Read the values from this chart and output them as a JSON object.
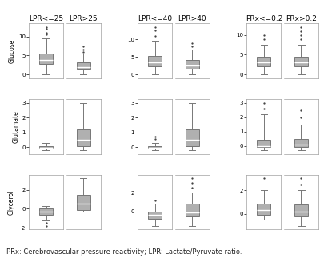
{
  "col_group_titles": [
    [
      "LPR<=25",
      "LPR>25"
    ],
    [
      "LPR<=40",
      "LPR>40"
    ],
    [
      "PRx<=0.2",
      "PRx>0.2"
    ]
  ],
  "row_labels": [
    "Glucose",
    "Glutamate",
    "Glycerol"
  ],
  "box_color": "#b0b0b0",
  "whisker_color": "#777777",
  "median_color": "#ffffff",
  "flier_color": "#333333",
  "background_color": "#ffffff",
  "caption": "PRx: Cerebrovascular pressure reactivity; LPR: Lactate/Pyruvate ratio.",
  "caption_fontsize": 6.0,
  "title_fontsize": 6.5,
  "ylabel_fontsize": 5.5,
  "tick_fontsize": 5.0,
  "boxes": {
    "row0_col0_box0": {
      "whislo": 0.0,
      "q1": 2.8,
      "med": 3.8,
      "q3": 5.5,
      "whishi": 9.5,
      "fliers_high": [
        10.5,
        11.0,
        12.0,
        12.5
      ],
      "fliers_low": []
    },
    "row0_col0_box1": {
      "whislo": 0.0,
      "q1": 1.2,
      "med": 2.0,
      "q3": 3.2,
      "whishi": 5.5,
      "fliers_high": [
        6.0,
        6.5,
        7.5
      ],
      "fliers_low": []
    },
    "row0_col1_box0": {
      "whislo": 0.0,
      "q1": 2.2,
      "med": 3.5,
      "q3": 5.2,
      "whishi": 9.5,
      "fliers_high": [
        11.0,
        12.5,
        13.5
      ],
      "fliers_low": []
    },
    "row0_col1_box1": {
      "whislo": 0.0,
      "q1": 1.5,
      "med": 2.5,
      "q3": 4.0,
      "whishi": 7.0,
      "fliers_high": [
        8.0,
        9.0
      ],
      "fliers_low": []
    },
    "row0_col2_box0": {
      "whislo": 0.0,
      "q1": 2.0,
      "med": 3.0,
      "q3": 4.5,
      "whishi": 7.5,
      "fliers_high": [
        9.0,
        10.0
      ],
      "fliers_low": []
    },
    "row0_col2_box1": {
      "whislo": 0.0,
      "q1": 2.0,
      "med": 3.0,
      "q3": 4.5,
      "whishi": 7.5,
      "fliers_high": [
        9.0,
        10.0,
        11.0,
        12.0
      ],
      "fliers_low": []
    },
    "row1_col0_box0": {
      "whislo": -0.2,
      "q1": -0.1,
      "med": -0.05,
      "q3": 0.05,
      "whishi": 0.3,
      "fliers_high": [],
      "fliers_low": []
    },
    "row1_col0_box1": {
      "whislo": -0.2,
      "q1": 0.05,
      "med": 0.5,
      "q3": 1.2,
      "whishi": 3.0,
      "fliers_high": [],
      "fliers_low": []
    },
    "row1_col1_box0": {
      "whislo": -0.2,
      "q1": -0.1,
      "med": -0.05,
      "q3": 0.05,
      "whishi": 0.3,
      "fliers_high": [
        0.55,
        0.7
      ],
      "fliers_low": []
    },
    "row1_col1_box1": {
      "whislo": -0.2,
      "q1": 0.05,
      "med": 0.5,
      "q3": 1.2,
      "whishi": 3.0,
      "fliers_high": [],
      "fliers_low": []
    },
    "row1_col2_box0": {
      "whislo": -0.3,
      "q1": -0.1,
      "med": 0.0,
      "q3": 0.4,
      "whishi": 2.2,
      "fliers_high": [
        2.6,
        3.0
      ],
      "fliers_low": []
    },
    "row1_col2_box1": {
      "whislo": -0.3,
      "q1": -0.1,
      "med": 0.1,
      "q3": 0.5,
      "whishi": 1.5,
      "fliers_high": [
        2.0,
        2.5
      ],
      "fliers_low": []
    },
    "row2_col0_box0": {
      "whislo": -1.2,
      "q1": -0.6,
      "med": -0.3,
      "q3": 0.0,
      "whishi": 0.3,
      "fliers_high": [],
      "fliers_low": [
        -1.5,
        -1.8
      ]
    },
    "row2_col0_box1": {
      "whislo": -0.3,
      "q1": -0.1,
      "med": 0.5,
      "q3": 1.5,
      "whishi": 3.2,
      "fliers_high": [],
      "fliers_low": []
    },
    "row2_col1_box0": {
      "whislo": -1.5,
      "q1": -0.8,
      "med": -0.3,
      "q3": 0.0,
      "whishi": 0.8,
      "fliers_high": [
        1.2
      ],
      "fliers_low": []
    },
    "row2_col1_box1": {
      "whislo": -1.5,
      "q1": -0.5,
      "med": -0.1,
      "q3": 0.8,
      "whishi": 2.0,
      "fliers_high": [
        2.5,
        3.0,
        3.5
      ],
      "fliers_low": []
    },
    "row2_col2_box0": {
      "whislo": -0.5,
      "q1": -0.1,
      "med": 0.3,
      "q3": 0.9,
      "whishi": 2.0,
      "fliers_high": [
        3.0
      ],
      "fliers_low": []
    },
    "row2_col2_box1": {
      "whislo": -1.0,
      "q1": -0.2,
      "med": 0.2,
      "q3": 0.8,
      "whishi": 2.0,
      "fliers_high": [
        2.5,
        3.0
      ],
      "fliers_low": []
    }
  }
}
